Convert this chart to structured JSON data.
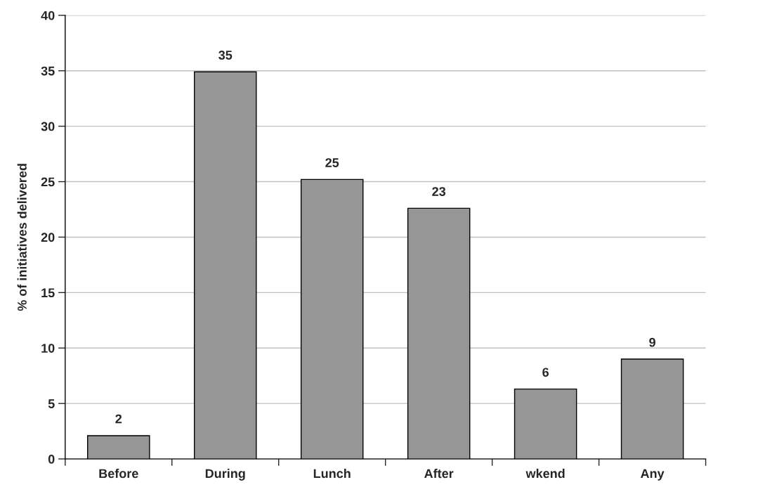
{
  "chart_data": {
    "type": "bar",
    "ylabel": "% of initiatives delivered",
    "categories": [
      "Before",
      "During",
      "Lunch",
      "After",
      "wkend",
      "Any"
    ],
    "values": [
      2.1,
      34.9,
      25.2,
      22.6,
      6.3,
      9.0
    ],
    "value_labels": [
      "2",
      "35",
      "25",
      "23",
      "6",
      "9"
    ],
    "color": "#969696",
    "ylim": [
      0,
      40
    ],
    "yticks": [
      0,
      5,
      10,
      15,
      20,
      25,
      30,
      35,
      40
    ],
    "grid": "y",
    "legend": false
  }
}
